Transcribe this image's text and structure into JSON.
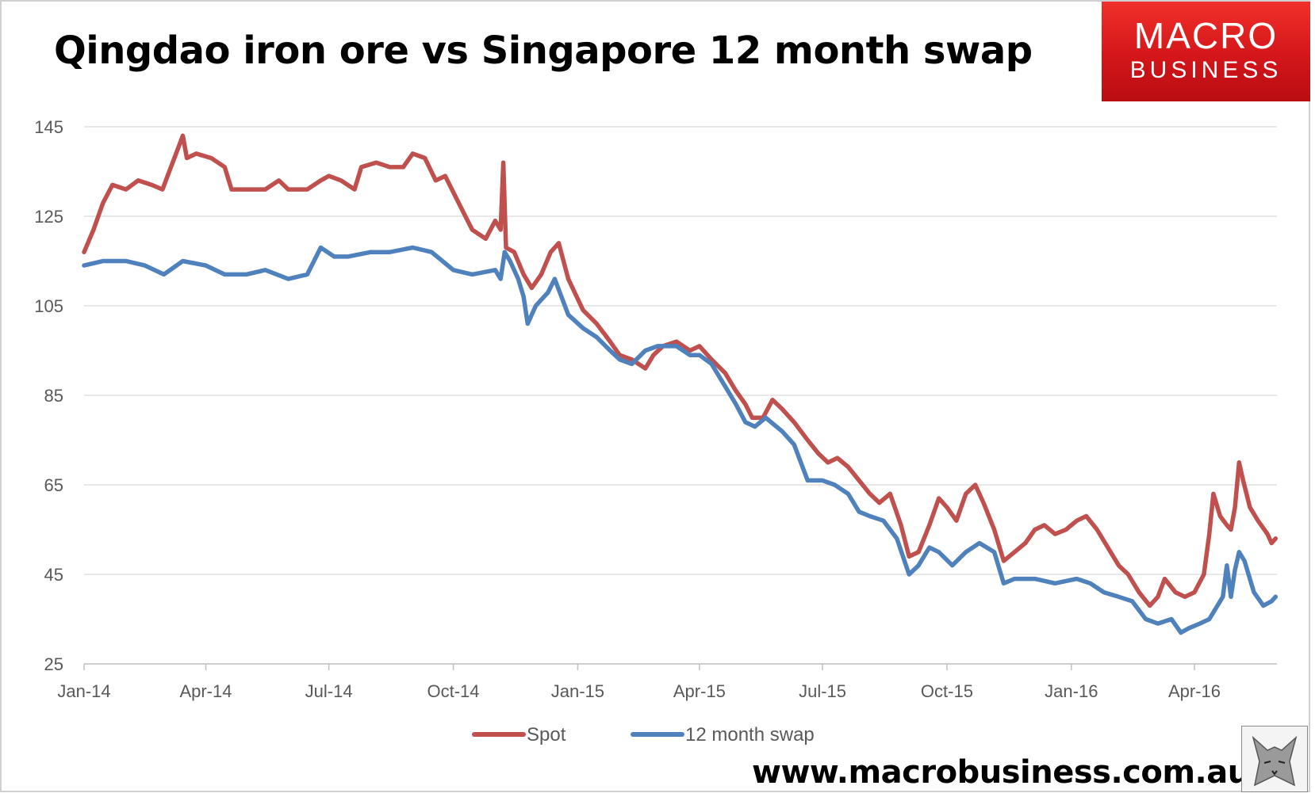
{
  "title": "Qingdao iron ore vs Singapore 12 month swap",
  "logo": {
    "line1": "MACRO",
    "line2": "BUSINESS"
  },
  "website": "www.macrobusiness.com.au",
  "colors": {
    "spot": "#c0504d",
    "swap": "#4f81bd",
    "grid": "#d9d9d9",
    "axis": "#bfbfbf",
    "logo": "#e01e1e"
  },
  "chart_data": {
    "type": "line",
    "title": "Qingdao iron ore vs Singapore 12 month swap",
    "xlabel": "",
    "ylabel": "",
    "ylim": [
      25,
      145
    ],
    "yticks": [
      25,
      45,
      65,
      85,
      105,
      125,
      145
    ],
    "xlim": [
      "2014-01-01",
      "2016-06-01"
    ],
    "xticks": [
      {
        "date": "2014-01-01",
        "label": "Jan-14"
      },
      {
        "date": "2014-04-01",
        "label": "Apr-14"
      },
      {
        "date": "2014-07-01",
        "label": "Jul-14"
      },
      {
        "date": "2014-10-01",
        "label": "Oct-14"
      },
      {
        "date": "2015-01-01",
        "label": "Jan-15"
      },
      {
        "date": "2015-04-01",
        "label": "Apr-15"
      },
      {
        "date": "2015-07-01",
        "label": "Jul-15"
      },
      {
        "date": "2015-10-01",
        "label": "Oct-15"
      },
      {
        "date": "2016-01-01",
        "label": "Jan-16"
      },
      {
        "date": "2016-04-01",
        "label": "Apr-16"
      }
    ],
    "grid": "horizontal",
    "legend": "bottom-center",
    "series": [
      {
        "name": "Spot",
        "color": "#c0504d",
        "points": [
          [
            "2014-01-01",
            117
          ],
          [
            "2014-01-08",
            122
          ],
          [
            "2014-01-15",
            128
          ],
          [
            "2014-01-22",
            132
          ],
          [
            "2014-02-01",
            131
          ],
          [
            "2014-02-10",
            133
          ],
          [
            "2014-02-20",
            132
          ],
          [
            "2014-02-28",
            131
          ],
          [
            "2014-03-05",
            135
          ],
          [
            "2014-03-10",
            139
          ],
          [
            "2014-03-15",
            143
          ],
          [
            "2014-03-18",
            138
          ],
          [
            "2014-03-25",
            139
          ],
          [
            "2014-04-05",
            138
          ],
          [
            "2014-04-15",
            136
          ],
          [
            "2014-04-20",
            131
          ],
          [
            "2014-05-01",
            131
          ],
          [
            "2014-05-15",
            131
          ],
          [
            "2014-05-25",
            133
          ],
          [
            "2014-06-01",
            131
          ],
          [
            "2014-06-15",
            131
          ],
          [
            "2014-06-25",
            133
          ],
          [
            "2014-07-01",
            134
          ],
          [
            "2014-07-10",
            133
          ],
          [
            "2014-07-20",
            131
          ],
          [
            "2014-07-25",
            136
          ],
          [
            "2014-08-05",
            137
          ],
          [
            "2014-08-15",
            136
          ],
          [
            "2014-08-25",
            136
          ],
          [
            "2014-09-01",
            139
          ],
          [
            "2014-09-10",
            138
          ],
          [
            "2014-09-18",
            133
          ],
          [
            "2014-09-25",
            134
          ],
          [
            "2014-10-05",
            128
          ],
          [
            "2014-10-15",
            122
          ],
          [
            "2014-10-25",
            120
          ],
          [
            "2014-11-01",
            124
          ],
          [
            "2014-11-05",
            122
          ],
          [
            "2014-11-07",
            137
          ],
          [
            "2014-11-09",
            118
          ],
          [
            "2014-11-15",
            117
          ],
          [
            "2014-11-22",
            112
          ],
          [
            "2014-11-28",
            109
          ],
          [
            "2014-12-05",
            112
          ],
          [
            "2014-12-12",
            117
          ],
          [
            "2014-12-18",
            119
          ],
          [
            "2014-12-25",
            111
          ],
          [
            "2015-01-05",
            104
          ],
          [
            "2015-01-15",
            101
          ],
          [
            "2015-01-25",
            97
          ],
          [
            "2015-02-01",
            94
          ],
          [
            "2015-02-10",
            93
          ],
          [
            "2015-02-20",
            91
          ],
          [
            "2015-02-26",
            94
          ],
          [
            "2015-03-05",
            96
          ],
          [
            "2015-03-15",
            97
          ],
          [
            "2015-03-25",
            95
          ],
          [
            "2015-04-01",
            96
          ],
          [
            "2015-04-10",
            93
          ],
          [
            "2015-04-20",
            90
          ],
          [
            "2015-04-28",
            86
          ],
          [
            "2015-05-05",
            83
          ],
          [
            "2015-05-10",
            80
          ],
          [
            "2015-05-18",
            80
          ],
          [
            "2015-05-25",
            84
          ],
          [
            "2015-06-01",
            82
          ],
          [
            "2015-06-10",
            79
          ],
          [
            "2015-06-20",
            75
          ],
          [
            "2015-06-28",
            72
          ],
          [
            "2015-07-05",
            70
          ],
          [
            "2015-07-12",
            71
          ],
          [
            "2015-07-20",
            69
          ],
          [
            "2015-07-28",
            66
          ],
          [
            "2015-08-05",
            63
          ],
          [
            "2015-08-12",
            61
          ],
          [
            "2015-08-20",
            63
          ],
          [
            "2015-08-28",
            56
          ],
          [
            "2015-09-03",
            49
          ],
          [
            "2015-09-10",
            50
          ],
          [
            "2015-09-18",
            56
          ],
          [
            "2015-09-25",
            62
          ],
          [
            "2015-10-01",
            60
          ],
          [
            "2015-10-08",
            57
          ],
          [
            "2015-10-15",
            63
          ],
          [
            "2015-10-22",
            65
          ],
          [
            "2015-10-28",
            61
          ],
          [
            "2015-11-05",
            55
          ],
          [
            "2015-11-12",
            48
          ],
          [
            "2015-11-20",
            50
          ],
          [
            "2015-11-28",
            52
          ],
          [
            "2015-12-05",
            55
          ],
          [
            "2015-12-12",
            56
          ],
          [
            "2015-12-20",
            54
          ],
          [
            "2015-12-28",
            55
          ],
          [
            "2016-01-05",
            57
          ],
          [
            "2016-01-12",
            58
          ],
          [
            "2016-01-20",
            55
          ],
          [
            "2016-01-28",
            51
          ],
          [
            "2016-02-05",
            47
          ],
          [
            "2016-02-12",
            45
          ],
          [
            "2016-02-20",
            41
          ],
          [
            "2016-02-28",
            38
          ],
          [
            "2016-03-05",
            40
          ],
          [
            "2016-03-10",
            44
          ],
          [
            "2016-03-18",
            41
          ],
          [
            "2016-03-25",
            40
          ],
          [
            "2016-04-01",
            41
          ],
          [
            "2016-04-08",
            45
          ],
          [
            "2016-04-12",
            54
          ],
          [
            "2016-04-15",
            63
          ],
          [
            "2016-04-20",
            58
          ],
          [
            "2016-04-25",
            56
          ],
          [
            "2016-04-28",
            55
          ],
          [
            "2016-05-01",
            60
          ],
          [
            "2016-05-04",
            70
          ],
          [
            "2016-05-07",
            66
          ],
          [
            "2016-05-12",
            60
          ],
          [
            "2016-05-18",
            57
          ],
          [
            "2016-05-25",
            54
          ],
          [
            "2016-05-28",
            52
          ],
          [
            "2016-05-31",
            53
          ]
        ]
      },
      {
        "name": "12 month swap",
        "color": "#4f81bd",
        "points": [
          [
            "2014-01-01",
            114
          ],
          [
            "2014-01-15",
            115
          ],
          [
            "2014-02-01",
            115
          ],
          [
            "2014-02-15",
            114
          ],
          [
            "2014-03-01",
            112
          ],
          [
            "2014-03-15",
            115
          ],
          [
            "2014-04-01",
            114
          ],
          [
            "2014-04-15",
            112
          ],
          [
            "2014-05-01",
            112
          ],
          [
            "2014-05-15",
            113
          ],
          [
            "2014-06-01",
            111
          ],
          [
            "2014-06-15",
            112
          ],
          [
            "2014-06-25",
            118
          ],
          [
            "2014-07-05",
            116
          ],
          [
            "2014-07-15",
            116
          ],
          [
            "2014-08-01",
            117
          ],
          [
            "2014-08-15",
            117
          ],
          [
            "2014-09-01",
            118
          ],
          [
            "2014-09-15",
            117
          ],
          [
            "2014-10-01",
            113
          ],
          [
            "2014-10-15",
            112
          ],
          [
            "2014-11-01",
            113
          ],
          [
            "2014-11-05",
            111
          ],
          [
            "2014-11-08",
            117
          ],
          [
            "2014-11-12",
            115
          ],
          [
            "2014-11-18",
            111
          ],
          [
            "2014-11-22",
            107
          ],
          [
            "2014-11-25",
            101
          ],
          [
            "2014-12-01",
            105
          ],
          [
            "2014-12-10",
            108
          ],
          [
            "2014-12-15",
            111
          ],
          [
            "2014-12-25",
            103
          ],
          [
            "2015-01-05",
            100
          ],
          [
            "2015-01-15",
            98
          ],
          [
            "2015-01-25",
            95
          ],
          [
            "2015-02-01",
            93
          ],
          [
            "2015-02-10",
            92
          ],
          [
            "2015-02-20",
            95
          ],
          [
            "2015-03-01",
            96
          ],
          [
            "2015-03-15",
            96
          ],
          [
            "2015-03-25",
            94
          ],
          [
            "2015-04-01",
            94
          ],
          [
            "2015-04-10",
            92
          ],
          [
            "2015-04-20",
            87
          ],
          [
            "2015-04-28",
            83
          ],
          [
            "2015-05-05",
            79
          ],
          [
            "2015-05-12",
            78
          ],
          [
            "2015-05-20",
            80
          ],
          [
            "2015-06-01",
            77
          ],
          [
            "2015-06-10",
            74
          ],
          [
            "2015-06-20",
            66
          ],
          [
            "2015-07-01",
            66
          ],
          [
            "2015-07-10",
            65
          ],
          [
            "2015-07-20",
            63
          ],
          [
            "2015-07-28",
            59
          ],
          [
            "2015-08-05",
            58
          ],
          [
            "2015-08-15",
            57
          ],
          [
            "2015-08-25",
            53
          ],
          [
            "2015-09-03",
            45
          ],
          [
            "2015-09-10",
            47
          ],
          [
            "2015-09-18",
            51
          ],
          [
            "2015-09-25",
            50
          ],
          [
            "2015-10-05",
            47
          ],
          [
            "2015-10-15",
            50
          ],
          [
            "2015-10-25",
            52
          ],
          [
            "2015-11-05",
            50
          ],
          [
            "2015-11-12",
            43
          ],
          [
            "2015-11-20",
            44
          ],
          [
            "2015-12-05",
            44
          ],
          [
            "2015-12-20",
            43
          ],
          [
            "2016-01-05",
            44
          ],
          [
            "2016-01-15",
            43
          ],
          [
            "2016-01-25",
            41
          ],
          [
            "2016-02-05",
            40
          ],
          [
            "2016-02-15",
            39
          ],
          [
            "2016-02-25",
            35
          ],
          [
            "2016-03-05",
            34
          ],
          [
            "2016-03-15",
            35
          ],
          [
            "2016-03-22",
            32
          ],
          [
            "2016-03-28",
            33
          ],
          [
            "2016-04-05",
            34
          ],
          [
            "2016-04-12",
            35
          ],
          [
            "2016-04-18",
            38
          ],
          [
            "2016-04-22",
            40
          ],
          [
            "2016-04-25",
            47
          ],
          [
            "2016-04-28",
            40
          ],
          [
            "2016-05-01",
            46
          ],
          [
            "2016-05-04",
            50
          ],
          [
            "2016-05-08",
            48
          ],
          [
            "2016-05-15",
            41
          ],
          [
            "2016-05-22",
            38
          ],
          [
            "2016-05-28",
            39
          ],
          [
            "2016-05-31",
            40
          ]
        ]
      }
    ]
  }
}
